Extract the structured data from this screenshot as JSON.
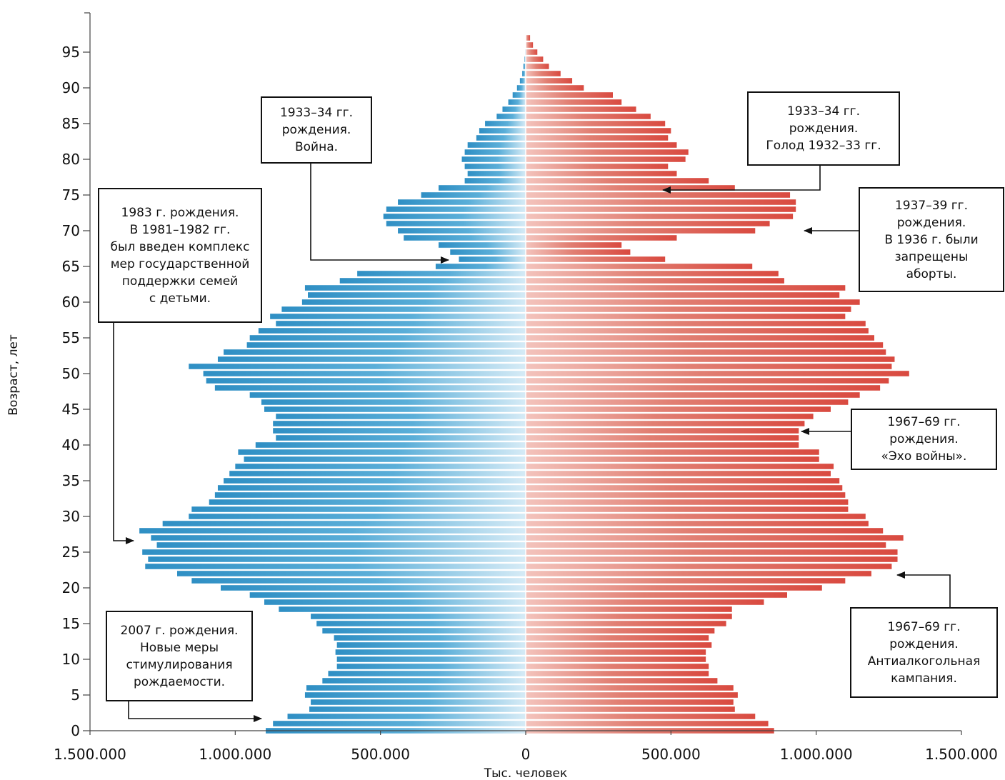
{
  "chart_data": {
    "type": "bar",
    "orientation": "horizontal",
    "title": "",
    "xlabel": "Тыс. человек",
    "ylabel": "Возраст, лет",
    "xlim": [
      -1500000,
      1500000
    ],
    "ylim": [
      0,
      95
    ],
    "x_tick_labels": [
      "1.500.000",
      "1.000.000",
      "500.000",
      "0",
      "500.000",
      "1.000.000",
      "1.500.000"
    ],
    "x_tick_values": [
      -1500000,
      -1000000,
      -500000,
      0,
      500000,
      1000000,
      1500000
    ],
    "y_ticks": [
      0,
      5,
      10,
      15,
      20,
      25,
      30,
      35,
      40,
      45,
      50,
      55,
      60,
      65,
      70,
      75,
      80,
      85,
      90,
      95
    ],
    "ages": [
      0,
      1,
      2,
      3,
      4,
      5,
      6,
      7,
      8,
      9,
      10,
      11,
      12,
      13,
      14,
      15,
      16,
      17,
      18,
      19,
      20,
      21,
      22,
      23,
      24,
      25,
      26,
      27,
      28,
      29,
      30,
      31,
      32,
      33,
      34,
      35,
      36,
      37,
      38,
      39,
      40,
      41,
      42,
      43,
      44,
      45,
      46,
      47,
      48,
      49,
      50,
      51,
      52,
      53,
      54,
      55,
      56,
      57,
      58,
      59,
      60,
      61,
      62,
      63,
      64,
      65,
      66,
      67,
      68,
      69,
      70,
      71,
      72,
      73,
      74,
      75,
      76,
      77,
      78,
      79,
      80,
      81,
      82,
      83,
      84,
      85,
      86,
      87,
      88,
      89,
      90,
      91,
      92,
      93,
      94,
      95,
      96,
      97
    ],
    "series": [
      {
        "side": "left",
        "color": "#3d9fd0",
        "values": [
          895000,
          870000,
          820000,
          745000,
          740000,
          760000,
          755000,
          700000,
          680000,
          650000,
          650000,
          655000,
          650000,
          660000,
          700000,
          720000,
          740000,
          850000,
          900000,
          950000,
          1050000,
          1150000,
          1200000,
          1310000,
          1300000,
          1320000,
          1270000,
          1290000,
          1330000,
          1250000,
          1160000,
          1150000,
          1090000,
          1070000,
          1060000,
          1040000,
          1020000,
          1000000,
          970000,
          990000,
          930000,
          860000,
          870000,
          870000,
          860000,
          900000,
          910000,
          950000,
          1070000,
          1100000,
          1110000,
          1160000,
          1060000,
          1040000,
          960000,
          950000,
          920000,
          860000,
          880000,
          840000,
          770000,
          750000,
          760000,
          640000,
          580000,
          310000,
          230000,
          260000,
          300000,
          420000,
          440000,
          480000,
          490000,
          480000,
          440000,
          360000,
          300000,
          210000,
          200000,
          210000,
          220000,
          210000,
          200000,
          170000,
          160000,
          140000,
          100000,
          80000,
          60000,
          45000,
          30000,
          20000,
          12000,
          8000,
          4000,
          2000,
          1000,
          500
        ]
      },
      {
        "side": "right",
        "color": "#de5a4e",
        "values": [
          855000,
          835000,
          790000,
          720000,
          715000,
          730000,
          715000,
          660000,
          630000,
          630000,
          620000,
          620000,
          640000,
          630000,
          650000,
          690000,
          710000,
          710000,
          820000,
          900000,
          1020000,
          1100000,
          1190000,
          1260000,
          1280000,
          1280000,
          1240000,
          1300000,
          1230000,
          1180000,
          1170000,
          1110000,
          1110000,
          1100000,
          1090000,
          1080000,
          1050000,
          1060000,
          1010000,
          1010000,
          940000,
          940000,
          940000,
          960000,
          990000,
          1050000,
          1110000,
          1150000,
          1220000,
          1250000,
          1320000,
          1260000,
          1270000,
          1240000,
          1230000,
          1200000,
          1180000,
          1170000,
          1100000,
          1120000,
          1150000,
          1080000,
          1100000,
          890000,
          870000,
          780000,
          480000,
          360000,
          330000,
          520000,
          790000,
          840000,
          920000,
          930000,
          930000,
          910000,
          720000,
          630000,
          520000,
          490000,
          550000,
          560000,
          520000,
          490000,
          500000,
          480000,
          430000,
          380000,
          330000,
          300000,
          200000,
          160000,
          120000,
          80000,
          60000,
          40000,
          25000,
          15000
        ]
      }
    ]
  },
  "annotations": [
    {
      "id": "births-1933-34-war",
      "lines": [
        "1933–34 гг.",
        "рождения.",
        "Война."
      ]
    },
    {
      "id": "births-1933-34-famine",
      "lines": [
        "1933–34 гг.",
        "рождения.",
        "Голод 1932–33 гг."
      ]
    },
    {
      "id": "births-1983",
      "lines": [
        "1983 г. рождения.",
        "В 1981–1982 гг.",
        "был введен комплекс",
        "мер государственной",
        "поддержки семей",
        "с детьми."
      ]
    },
    {
      "id": "births-1937-39",
      "lines": [
        "1937–39 гг.",
        "рождения.",
        "В 1936 г. были",
        "запрещены",
        "аборты."
      ]
    },
    {
      "id": "births-1967-69-echo",
      "lines": [
        "1967–69 гг.",
        "рождения.",
        "«Эхо войны»."
      ]
    },
    {
      "id": "births-2007",
      "lines": [
        "2007 г. рождения.",
        "Новые меры",
        "стимулирования",
        "рождаемости."
      ]
    },
    {
      "id": "births-1967-69-antialcohol",
      "lines": [
        "1967–69 гг.",
        "рождения.",
        "Антиалкогольная",
        "кампания."
      ]
    }
  ]
}
